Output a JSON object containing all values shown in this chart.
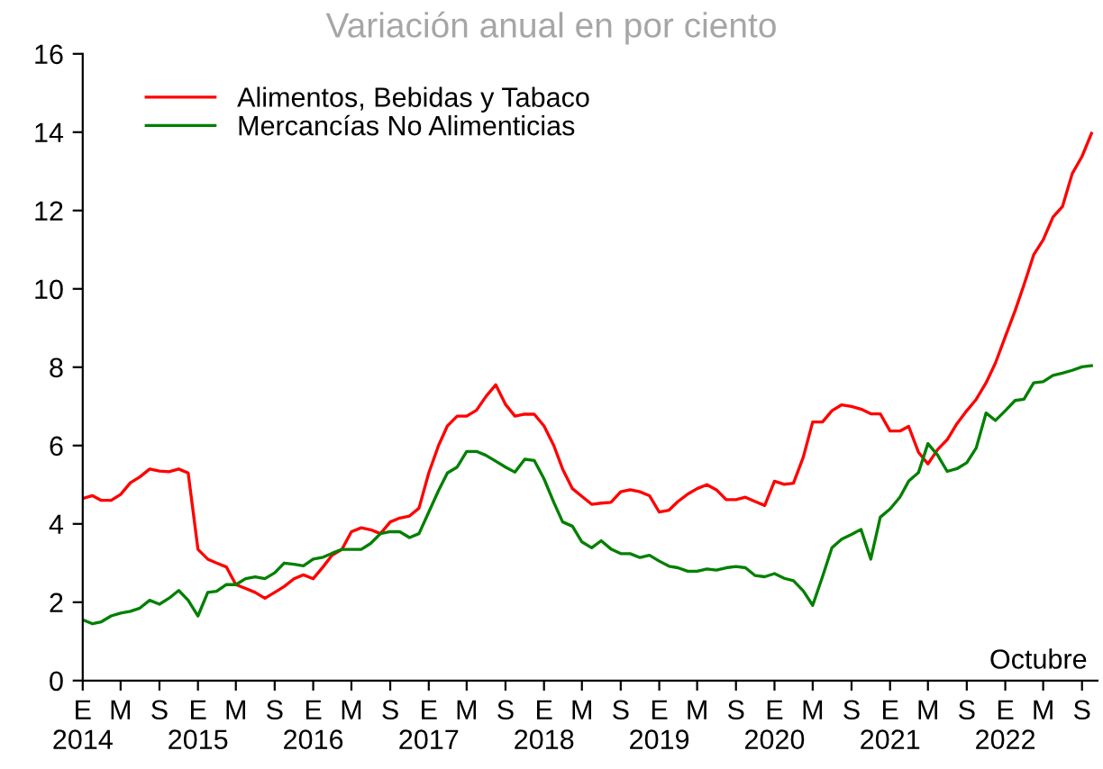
{
  "chart_data": {
    "type": "line",
    "title": "Variación anual en por ciento",
    "x": [
      "2014-01",
      "2014-02",
      "2014-03",
      "2014-04",
      "2014-05",
      "2014-06",
      "2014-07",
      "2014-08",
      "2014-09",
      "2014-10",
      "2014-11",
      "2014-12",
      "2015-01",
      "2015-02",
      "2015-03",
      "2015-04",
      "2015-05",
      "2015-06",
      "2015-07",
      "2015-08",
      "2015-09",
      "2015-10",
      "2015-11",
      "2015-12",
      "2016-01",
      "2016-02",
      "2016-03",
      "2016-04",
      "2016-05",
      "2016-06",
      "2016-07",
      "2016-08",
      "2016-09",
      "2016-10",
      "2016-11",
      "2016-12",
      "2017-01",
      "2017-02",
      "2017-03",
      "2017-04",
      "2017-05",
      "2017-06",
      "2017-07",
      "2017-08",
      "2017-09",
      "2017-10",
      "2017-11",
      "2017-12",
      "2018-01",
      "2018-02",
      "2018-03",
      "2018-04",
      "2018-05",
      "2018-06",
      "2018-07",
      "2018-08",
      "2018-09",
      "2018-10",
      "2018-11",
      "2018-12",
      "2019-01",
      "2019-02",
      "2019-03",
      "2019-04",
      "2019-05",
      "2019-06",
      "2019-07",
      "2019-08",
      "2019-09",
      "2019-10",
      "2019-11",
      "2019-12",
      "2020-01",
      "2020-02",
      "2020-03",
      "2020-04",
      "2020-05",
      "2020-06",
      "2020-07",
      "2020-08",
      "2020-09",
      "2020-10",
      "2020-11",
      "2020-12",
      "2021-01",
      "2021-02",
      "2021-03",
      "2021-04",
      "2021-05",
      "2021-06",
      "2021-07",
      "2021-08",
      "2021-09",
      "2021-10",
      "2021-11",
      "2021-12",
      "2022-01",
      "2022-02",
      "2022-03",
      "2022-04",
      "2022-05",
      "2022-06",
      "2022-07",
      "2022-08",
      "2022-09",
      "2022-10"
    ],
    "series": [
      {
        "name": "Alimentos, Bebidas y Tabaco",
        "color": "#ff0000",
        "values": [
          4.65,
          4.72,
          4.6,
          4.6,
          4.75,
          5.05,
          5.2,
          5.4,
          5.35,
          5.33,
          5.4,
          5.3,
          3.35,
          3.1,
          3.0,
          2.9,
          2.45,
          2.35,
          2.25,
          2.1,
          2.25,
          2.4,
          2.6,
          2.7,
          2.6,
          2.9,
          3.2,
          3.35,
          3.8,
          3.9,
          3.85,
          3.75,
          4.05,
          4.15,
          4.2,
          4.4,
          5.3,
          6.0,
          6.5,
          6.75,
          6.75,
          6.9,
          7.25,
          7.55,
          7.05,
          6.75,
          6.8,
          6.8,
          6.5,
          6.0,
          5.4,
          4.9,
          4.7,
          4.5,
          4.53,
          4.55,
          4.82,
          4.87,
          4.82,
          4.72,
          4.3,
          4.35,
          4.57,
          4.76,
          4.9,
          5.0,
          4.87,
          4.62,
          4.62,
          4.68,
          4.57,
          4.47,
          5.09,
          5.01,
          5.04,
          5.7,
          6.6,
          6.6,
          6.89,
          7.04,
          7.0,
          6.93,
          6.81,
          6.81,
          6.37,
          6.37,
          6.49,
          5.83,
          5.53,
          5.9,
          6.15,
          6.56,
          6.89,
          7.18,
          7.6,
          8.11,
          8.78,
          9.44,
          10.1,
          10.87,
          11.25,
          11.83,
          12.1,
          12.94,
          13.38,
          13.97
        ]
      },
      {
        "name": "Mercancías No Alimenticias",
        "color": "#008000",
        "values": [
          1.55,
          1.45,
          1.5,
          1.65,
          1.72,
          1.77,
          1.85,
          2.05,
          1.95,
          2.1,
          2.3,
          2.05,
          1.65,
          2.25,
          2.28,
          2.45,
          2.45,
          2.6,
          2.65,
          2.6,
          2.75,
          3.0,
          2.97,
          2.93,
          3.1,
          3.15,
          3.25,
          3.35,
          3.35,
          3.35,
          3.5,
          3.75,
          3.8,
          3.8,
          3.65,
          3.75,
          4.3,
          4.85,
          5.3,
          5.45,
          5.85,
          5.85,
          5.75,
          5.6,
          5.45,
          5.32,
          5.65,
          5.62,
          5.15,
          4.55,
          4.05,
          3.94,
          3.54,
          3.39,
          3.57,
          3.36,
          3.24,
          3.24,
          3.14,
          3.2,
          3.05,
          2.92,
          2.88,
          2.79,
          2.79,
          2.85,
          2.82,
          2.88,
          2.91,
          2.88,
          2.68,
          2.65,
          2.73,
          2.61,
          2.55,
          2.29,
          1.92,
          2.65,
          3.39,
          3.61,
          3.73,
          3.86,
          3.1,
          4.17,
          4.38,
          4.68,
          5.09,
          5.31,
          6.05,
          5.75,
          5.34,
          5.41,
          5.56,
          5.94,
          6.83,
          6.64,
          6.89,
          7.15,
          7.18,
          7.6,
          7.63,
          7.79,
          7.85,
          7.92,
          8.01,
          8.04
        ]
      }
    ],
    "xlim": [
      "2014-01",
      "2022-10-20"
    ],
    "xticks": [
      {
        "value": "2014-01",
        "label": "E\n2014"
      },
      {
        "value": "2014-05",
        "label": "M"
      },
      {
        "value": "2014-09",
        "label": "S"
      },
      {
        "value": "2015-01",
        "label": "E\n2015"
      },
      {
        "value": "2015-05",
        "label": "M"
      },
      {
        "value": "2015-09",
        "label": "S"
      },
      {
        "value": "2016-01",
        "label": "E\n2016"
      },
      {
        "value": "2016-05",
        "label": "M"
      },
      {
        "value": "2016-09",
        "label": "S"
      },
      {
        "value": "2017-01",
        "label": "E\n2017"
      },
      {
        "value": "2017-05",
        "label": "M"
      },
      {
        "value": "2017-09",
        "label": "S"
      },
      {
        "value": "2018-01",
        "label": "E\n2018"
      },
      {
        "value": "2018-05",
        "label": "M"
      },
      {
        "value": "2018-09",
        "label": "S"
      },
      {
        "value": "2019-01",
        "label": "E\n2019"
      },
      {
        "value": "2019-05",
        "label": "M"
      },
      {
        "value": "2019-09",
        "label": "S"
      },
      {
        "value": "2020-01",
        "label": "E\n2020"
      },
      {
        "value": "2020-05",
        "label": "M"
      },
      {
        "value": "2020-09",
        "label": "S"
      },
      {
        "value": "2021-01",
        "label": "E\n2021"
      },
      {
        "value": "2021-05",
        "label": "M"
      },
      {
        "value": "2021-09",
        "label": "S"
      },
      {
        "value": "2022-01",
        "label": "E\n2022"
      },
      {
        "value": "2022-05",
        "label": "M"
      },
      {
        "value": "2022-09",
        "label": "S"
      }
    ],
    "ylim": [
      0,
      16
    ],
    "yticks": [
      0,
      2,
      4,
      6,
      8,
      10,
      12,
      14,
      16
    ],
    "annotations": [
      "Octubre"
    ],
    "legend": "top left",
    "grid": false,
    "marker": "none",
    "line_style": "solid"
  }
}
